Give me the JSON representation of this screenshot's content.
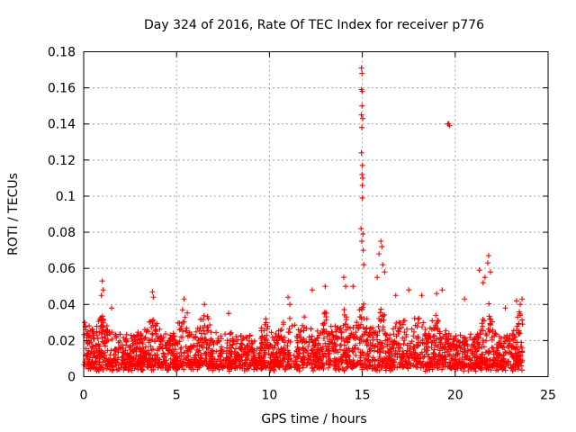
{
  "chart_data": {
    "type": "scatter",
    "title": "Day 324 of 2016, Rate Of TEC Index for receiver p776",
    "xlabel": "GPS time / hours",
    "ylabel": "ROTI / TECUs",
    "xlim": [
      0,
      25
    ],
    "ylim": [
      0,
      0.18
    ],
    "xticks": [
      "0",
      "5",
      "10",
      "15",
      "20",
      "25"
    ],
    "yticks": [
      "0",
      "0.02",
      "0.04",
      "0.06",
      "0.08",
      "0.1",
      "0.12",
      "0.14",
      "0.16",
      "0.18"
    ],
    "grid": true,
    "marker": "plus",
    "color": "#ff0000",
    "series": [
      {
        "name": "ROTI",
        "points": [
          [
            14.95,
            0.171
          ],
          [
            14.98,
            0.168
          ],
          [
            14.95,
            0.159
          ],
          [
            15.0,
            0.158
          ],
          [
            14.98,
            0.15
          ],
          [
            14.95,
            0.145
          ],
          [
            15.02,
            0.143
          ],
          [
            14.97,
            0.138
          ],
          [
            14.95,
            0.124
          ],
          [
            15.0,
            0.117
          ],
          [
            14.98,
            0.112
          ],
          [
            15.02,
            0.11
          ],
          [
            15.0,
            0.106
          ],
          [
            15.0,
            0.099
          ],
          [
            14.93,
            0.082
          ],
          [
            15.03,
            0.079
          ],
          [
            14.97,
            0.075
          ],
          [
            15.05,
            0.07
          ],
          [
            15.08,
            0.062
          ],
          [
            19.6,
            0.14
          ],
          [
            19.7,
            0.139
          ],
          [
            19.65,
            0.14
          ],
          [
            16.0,
            0.075
          ],
          [
            16.05,
            0.072
          ],
          [
            15.9,
            0.068
          ],
          [
            16.1,
            0.062
          ],
          [
            16.2,
            0.058
          ],
          [
            15.8,
            0.055
          ],
          [
            21.8,
            0.067
          ],
          [
            21.75,
            0.063
          ],
          [
            21.9,
            0.058
          ],
          [
            21.6,
            0.055
          ],
          [
            21.5,
            0.052
          ],
          [
            21.3,
            0.059
          ],
          [
            14.0,
            0.055
          ],
          [
            14.1,
            0.05
          ],
          [
            13.0,
            0.05
          ],
          [
            12.3,
            0.048
          ],
          [
            14.5,
            0.05
          ],
          [
            1.0,
            0.053
          ],
          [
            1.05,
            0.048
          ],
          [
            0.95,
            0.045
          ],
          [
            1.5,
            0.038
          ],
          [
            3.7,
            0.047
          ],
          [
            3.75,
            0.044
          ],
          [
            5.4,
            0.043
          ],
          [
            6.5,
            0.04
          ],
          [
            7.8,
            0.035
          ],
          [
            9.8,
            0.032
          ],
          [
            11.0,
            0.044
          ],
          [
            11.1,
            0.04
          ],
          [
            16.8,
            0.045
          ],
          [
            17.5,
            0.048
          ],
          [
            18.2,
            0.045
          ],
          [
            19.0,
            0.046
          ],
          [
            19.3,
            0.048
          ],
          [
            20.5,
            0.043
          ],
          [
            22.7,
            0.038
          ],
          [
            23.3,
            0.042
          ],
          [
            23.6,
            0.043
          ],
          [
            23.5,
            0.04
          ],
          [
            0.05,
            0.03
          ],
          [
            0.1,
            0.028
          ]
        ]
      }
    ]
  }
}
